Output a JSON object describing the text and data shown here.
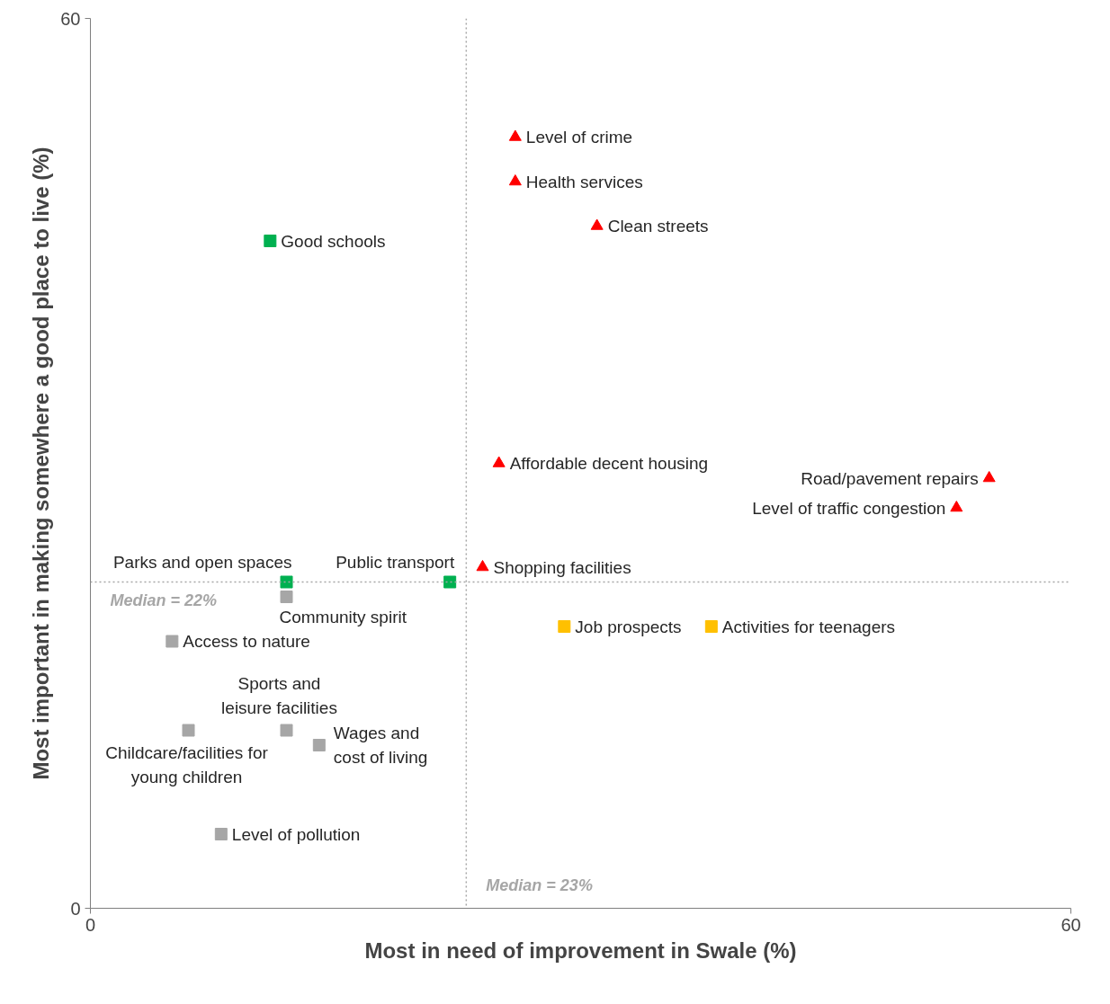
{
  "chart_data": {
    "type": "scatter",
    "xlabel": "Most in need of improvement in Swale (%)",
    "ylabel": "Most important in making somewhere a good place to live (%)",
    "xlim": [
      0,
      60
    ],
    "ylim": [
      0,
      60
    ],
    "xticks": [
      0,
      60
    ],
    "yticks": [
      0,
      60
    ],
    "series": [
      {
        "color": "#ff0000",
        "marker": "triangle",
        "x": [
          26,
          26,
          31,
          25,
          55,
          53,
          24
        ],
        "values": [
          52,
          49,
          46,
          30,
          29,
          27,
          23
        ]
      },
      {
        "color": "#00b050",
        "marker": "square",
        "x": [
          11,
          12,
          22
        ],
        "values": [
          45,
          22,
          22
        ]
      },
      {
        "color": "#ffc000",
        "marker": "square",
        "x": [
          29,
          38
        ],
        "values": [
          19,
          19
        ]
      },
      {
        "color": "#a6a6a6",
        "marker": "square",
        "x": [
          12,
          5,
          6,
          12,
          14,
          8
        ],
        "values": [
          21,
          18,
          12,
          12,
          11,
          5
        ]
      }
    ],
    "ref_lines": [
      {
        "axis": "y",
        "value": 22,
        "label": "Median  = 22%",
        "line_style": "dotted",
        "color": "#a6a6a6"
      },
      {
        "axis": "x",
        "value": 23,
        "label": "Median  = 23%",
        "line_style": "dotted",
        "color": "#a6a6a6"
      }
    ],
    "annotations": [
      {
        "text": "Level of crime",
        "x": 26,
        "y": 52
      },
      {
        "text": "Health services",
        "x": 26,
        "y": 49
      },
      {
        "text": "Clean streets",
        "x": 31,
        "y": 46
      },
      {
        "text": "Good schools",
        "x": 11,
        "y": 45
      },
      {
        "text": "Affordable decent housing",
        "x": 25,
        "y": 30
      },
      {
        "text": "Road/pavement repairs",
        "x": 55,
        "y": 29
      },
      {
        "text": "Level of traffic congestion",
        "x": 53,
        "y": 27
      },
      {
        "text": "Shopping facilities",
        "x": 24,
        "y": 23
      },
      {
        "text": "Parks and open spaces",
        "x": 12,
        "y": 22
      },
      {
        "text": "Public transport",
        "x": 22,
        "y": 22
      },
      {
        "text": "Community spirit",
        "x": 12,
        "y": 21
      },
      {
        "text": "Job prospects",
        "x": 29,
        "y": 19
      },
      {
        "text": "Activities for teenagers",
        "x": 38,
        "y": 19
      },
      {
        "text": "Access to nature",
        "x": 5,
        "y": 18
      },
      {
        "text": "Childcare/facilities for\nyoung children",
        "x": 6,
        "y": 12
      },
      {
        "text": "Sports and\nleisure facilities",
        "x": 12,
        "y": 12
      },
      {
        "text": "Wages and\ncost of living",
        "x": 14,
        "y": 11
      },
      {
        "text": "Level of pollution",
        "x": 8,
        "y": 5
      }
    ]
  }
}
